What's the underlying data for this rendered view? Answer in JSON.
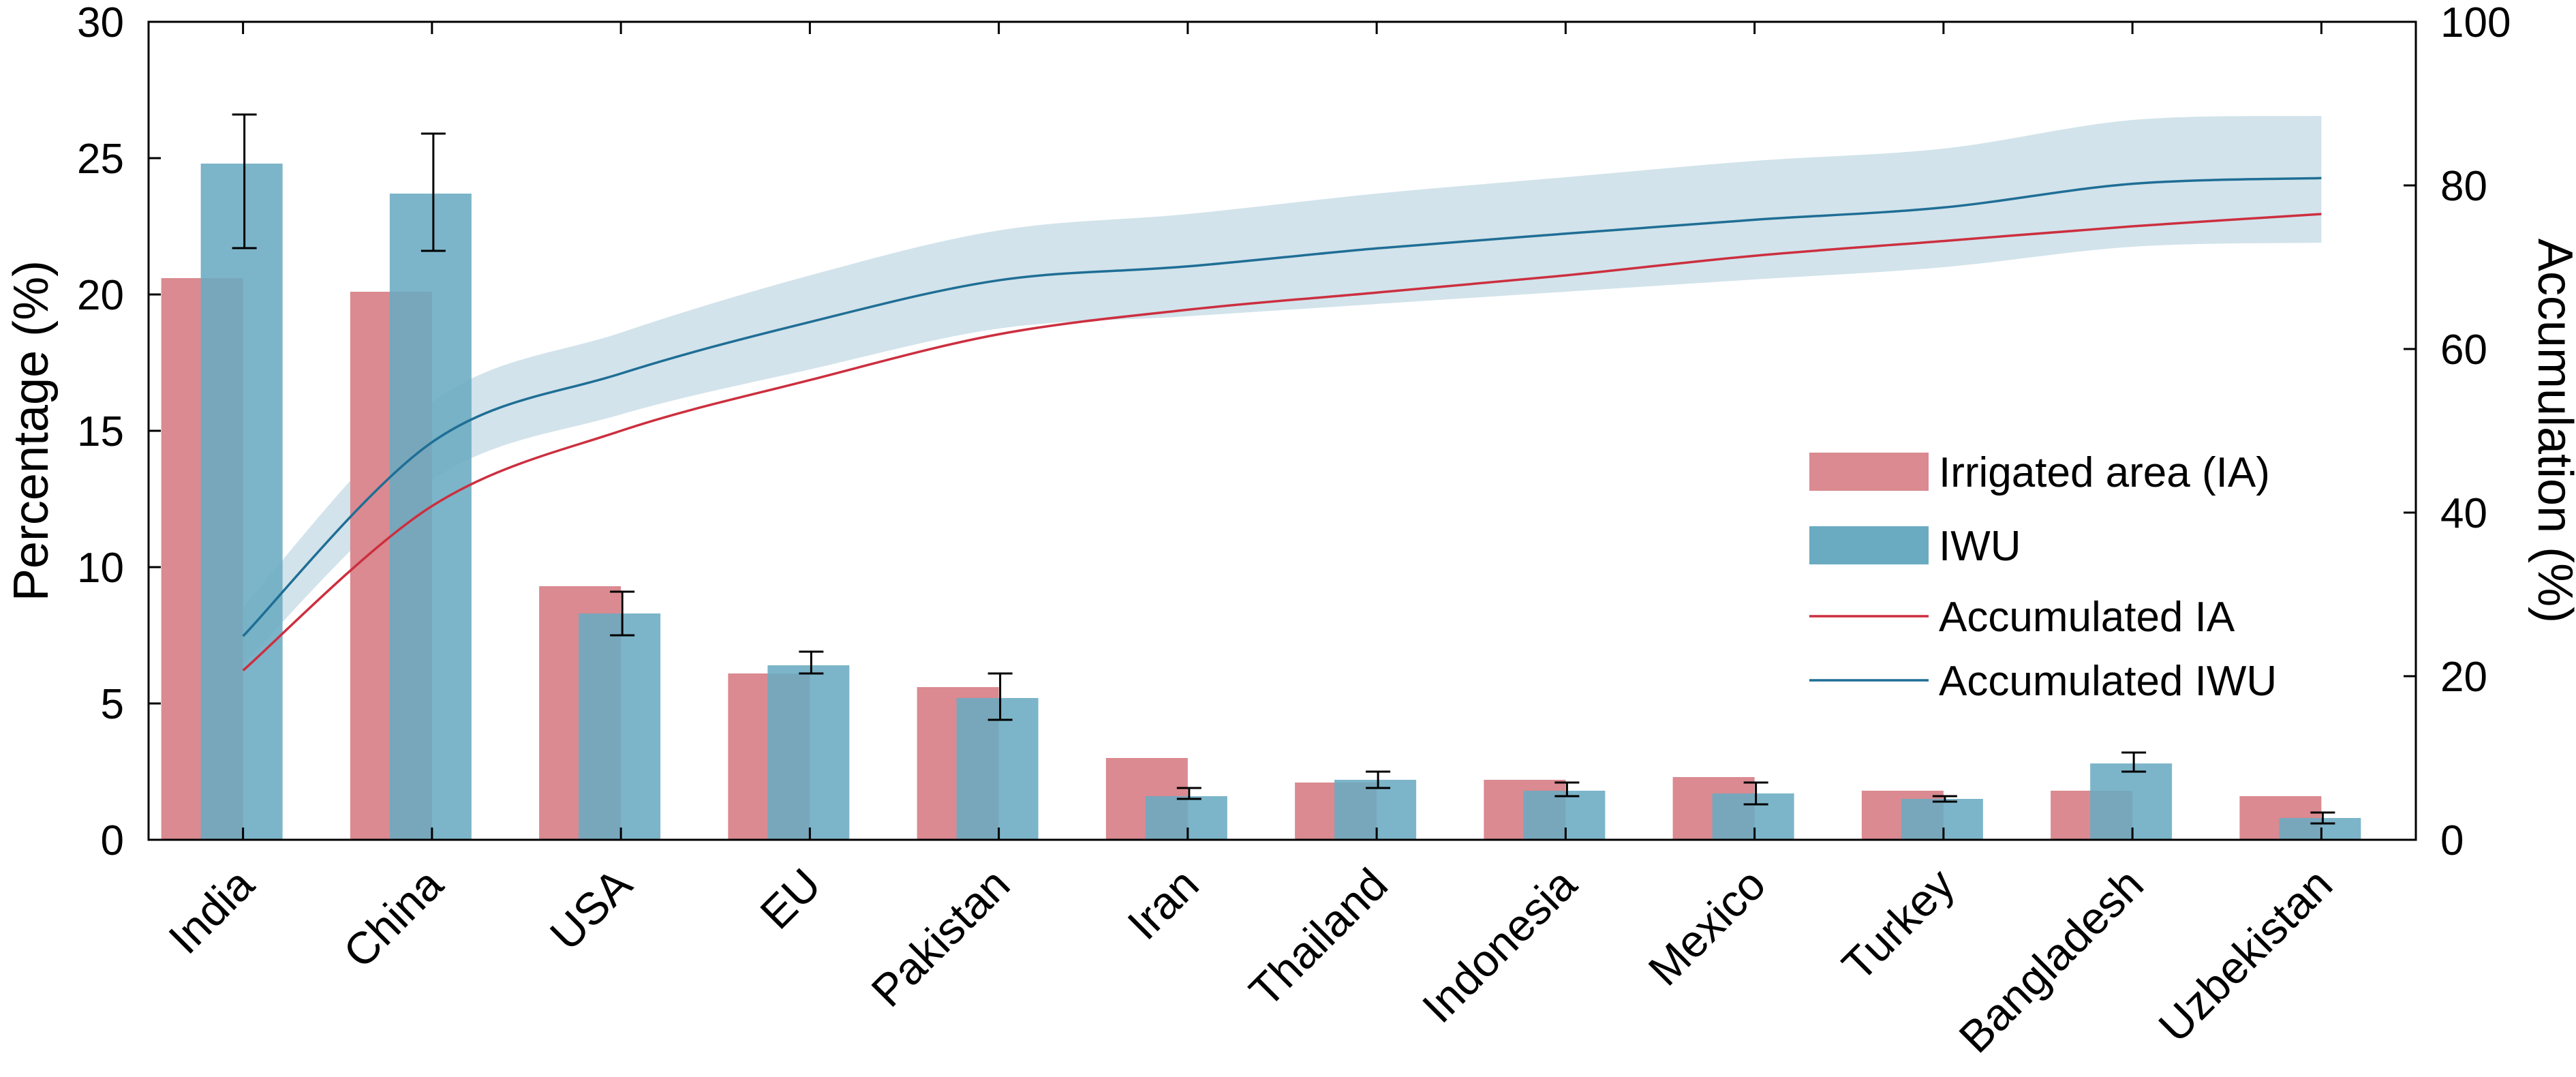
{
  "chart_data": {
    "type": "bar",
    "categories": [
      "India",
      "China",
      "USA",
      "EU",
      "Pakistan",
      "Iran",
      "Thailand",
      "Indonesia",
      "Mexico",
      "Turkey",
      "Bangladesh",
      "Uzbekistan"
    ],
    "series": [
      {
        "name": "Irrigated area (IA)",
        "type": "bar",
        "axis": "left",
        "color": "#DA8A90",
        "values": [
          20.6,
          20.1,
          9.3,
          6.1,
          5.6,
          3.0,
          2.1,
          2.2,
          2.3,
          1.8,
          1.8,
          1.6
        ]
      },
      {
        "name": "IWU",
        "type": "bar",
        "axis": "left",
        "color": "#6AABC2",
        "values": [
          24.8,
          23.7,
          8.3,
          6.4,
          5.2,
          1.6,
          2.2,
          1.8,
          1.7,
          1.5,
          2.8,
          0.8
        ],
        "error_low": [
          21.7,
          21.6,
          7.5,
          6.1,
          4.4,
          1.5,
          1.9,
          1.6,
          1.3,
          1.4,
          2.5,
          0.6
        ],
        "error_high": [
          26.6,
          25.9,
          9.1,
          6.9,
          6.1,
          1.9,
          2.5,
          2.1,
          2.1,
          1.6,
          3.2,
          1.0
        ]
      },
      {
        "name": "Accumulated IA",
        "type": "line",
        "axis": "right",
        "color": "#CC2F3F",
        "values": [
          20.7,
          40.8,
          50.0,
          56.2,
          61.8,
          64.8,
          66.9,
          69.0,
          71.4,
          73.2,
          75.0,
          76.5
        ]
      },
      {
        "name": "Accumulated IWU",
        "type": "line",
        "axis": "right",
        "color": "#1F6E95",
        "values": [
          24.9,
          48.6,
          57.0,
          63.3,
          68.4,
          70.1,
          72.3,
          74.1,
          75.8,
          77.3,
          80.2,
          80.9
        ],
        "band_low": [
          21.5,
          44.0,
          52.0,
          57.5,
          62.5,
          64.0,
          65.5,
          67.0,
          68.5,
          70.0,
          72.5,
          73.0
        ],
        "band_high": [
          28.5,
          53.5,
          62.0,
          69.0,
          74.5,
          76.5,
          79.0,
          81.0,
          83.0,
          84.5,
          88.0,
          88.5
        ],
        "band_color": "#D2E3EB"
      }
    ],
    "ylabel": "Percentage (%)",
    "ylabel_right": "Accumulation (%)",
    "ylim": [
      0,
      30
    ],
    "yticks": [
      "0",
      "5",
      "10",
      "15",
      "20",
      "25",
      "30"
    ],
    "ylim_right": [
      0,
      100
    ],
    "yticks_right": [
      "0",
      "20",
      "40",
      "60",
      "80",
      "100"
    ],
    "xlabel": "",
    "title": "",
    "grid": false,
    "legend_position": "center-right"
  }
}
